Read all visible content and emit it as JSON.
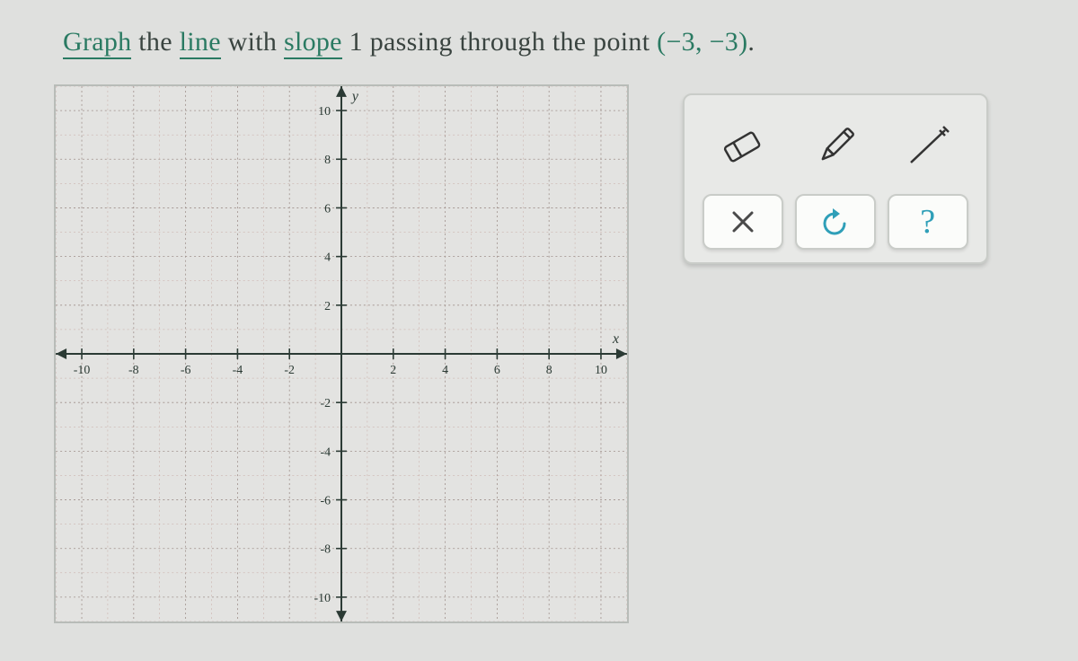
{
  "question": {
    "w1": "Graph",
    "w2": " the ",
    "w3": "line",
    "w4": " with ",
    "w5": "slope",
    "slope_val": " 1 ",
    "w6": "passing through the point ",
    "point": "(−3, −3)",
    "dot": "."
  },
  "graph": {
    "xlim": [
      -11,
      11
    ],
    "ylim": [
      -11,
      11
    ],
    "xticks": [
      -10,
      -8,
      -6,
      -4,
      -2,
      2,
      4,
      6,
      8,
      10
    ],
    "yticks": [
      -10,
      -8,
      -6,
      -4,
      -2,
      2,
      4,
      6,
      8,
      10
    ],
    "xlabel": "x",
    "ylabel": "y",
    "grid_minor_color": "#c7a8a2",
    "grid_major_color": "#9e8f8a",
    "axis_color": "#2b3a34",
    "bg_color": "#e3e3e1",
    "tick_font_size": 14,
    "label_font_size": 16
  },
  "toolbar": {
    "eraser_name": "eraser-icon",
    "pencil_name": "pencil-icon",
    "line_name": "line-tool-icon",
    "clear_label": "×",
    "undo_label": "↺",
    "help_label": "?"
  },
  "colors": {
    "link": "#2a7a62",
    "text": "#3a4440",
    "tool_accent": "#2f9fb8"
  }
}
